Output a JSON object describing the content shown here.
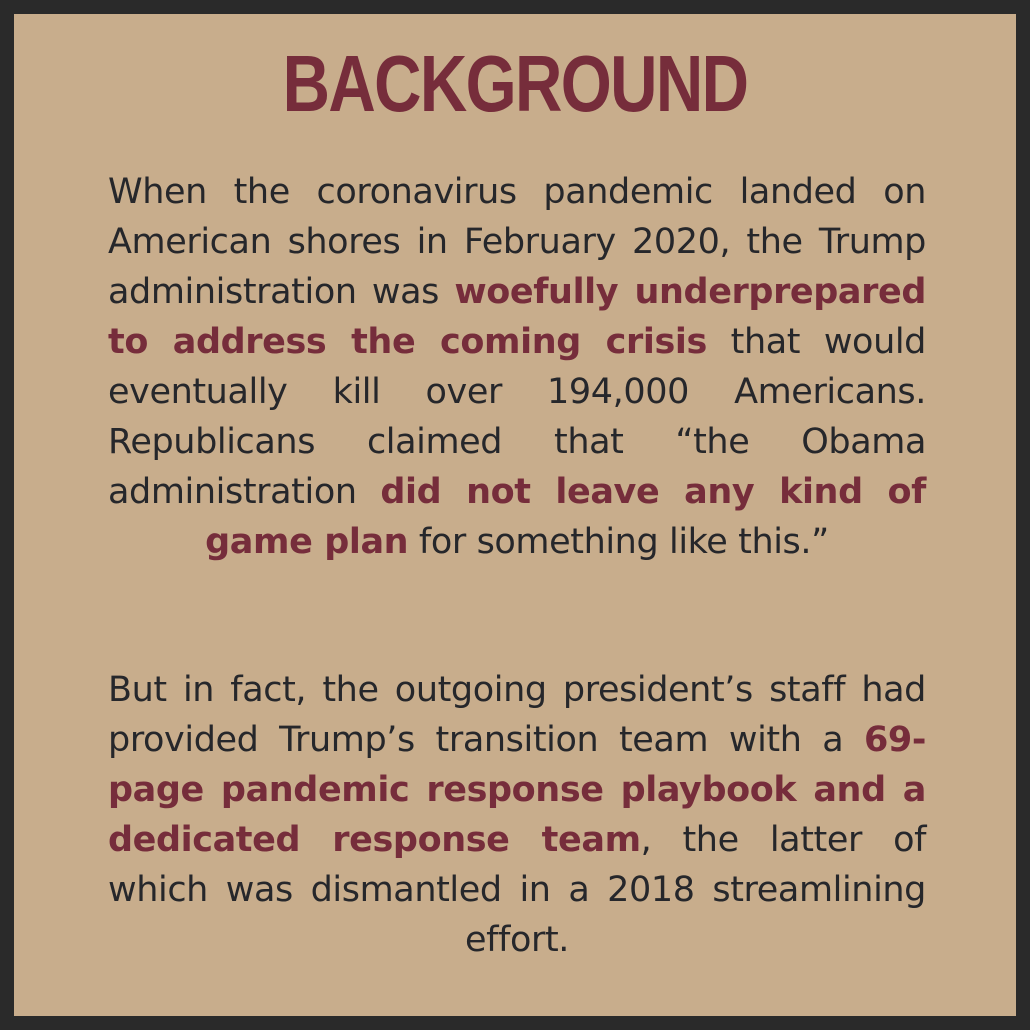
{
  "title": "BACKGROUND",
  "paragraph1": {
    "s1": "When the coronavirus pandemic landed on American shores in February 2020, the Trump administration was ",
    "h1": "woefully underprepared to address the coming crisis",
    "s2": " that would eventually kill over 194,000 Americans. Republicans claimed that “the Obama administration ",
    "h2": "did not leave any kind of game plan",
    "s3": " for something like this.”"
  },
  "paragraph2": {
    "s1": "But in fact, the outgoing president’s staff had provided Trump’s transition team with a ",
    "h1": "69-page pandemic response playbook and a dedicated response team",
    "s2": ", the latter of which was dismantled in a 2018 streamlining effort."
  },
  "colors": {
    "background": "#c8ad8c",
    "border": "#2a2a2a",
    "accent": "#762d3b",
    "text": "#26272b"
  }
}
